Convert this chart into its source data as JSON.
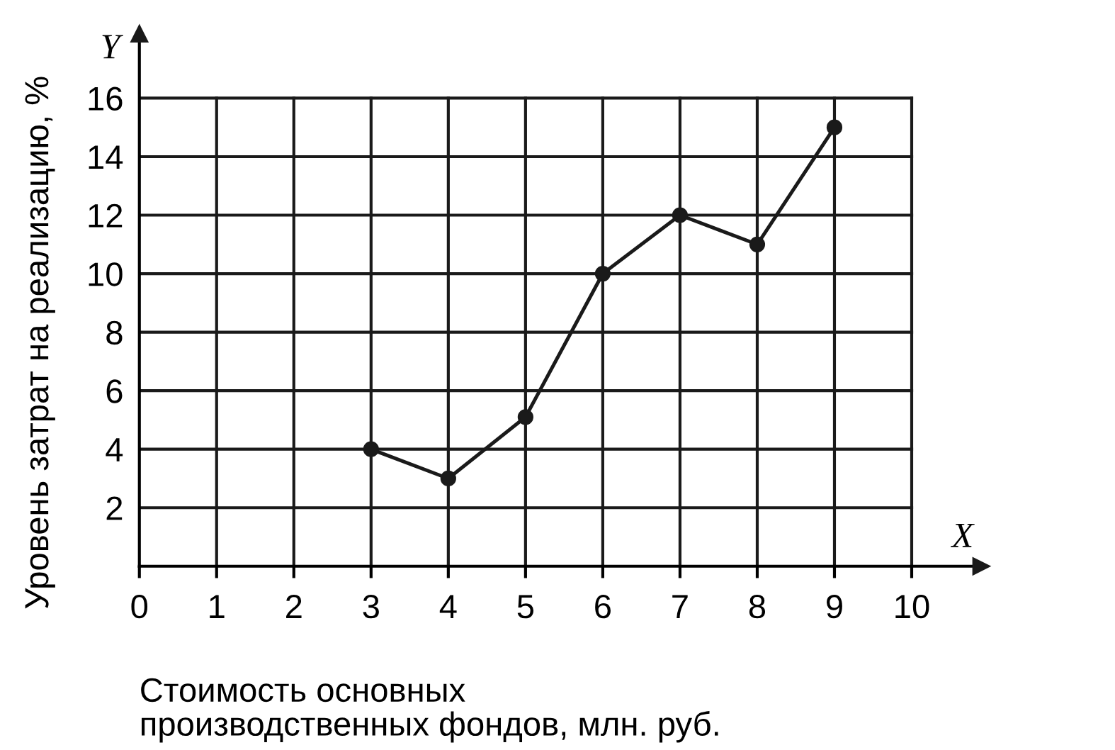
{
  "chart_data": {
    "type": "line",
    "xlabel": "Стоимость основных\nпроизводственных фондов, млн. руб.",
    "ylabel": "Уровень затрат на реализацию, %",
    "annotations": [
      "X",
      "Y"
    ],
    "x": [
      3,
      4,
      5,
      6,
      7,
      8,
      9
    ],
    "series": [
      {
        "color": "#1a1a1a",
        "values": [
          4,
          3,
          5.1,
          10,
          12,
          11,
          15
        ]
      }
    ],
    "xlim": [
      0,
      10.9
    ],
    "ylim": [
      0,
      18.2
    ],
    "xticks": [
      0,
      1,
      2,
      3,
      4,
      5,
      6,
      7,
      8,
      9,
      10
    ],
    "yticks": [
      {
        "value": 0,
        "label": null
      },
      2,
      4,
      6,
      8,
      10,
      12,
      14,
      16
    ],
    "grid": true,
    "legend": false,
    "marker": "circle",
    "line_style": "solid"
  }
}
